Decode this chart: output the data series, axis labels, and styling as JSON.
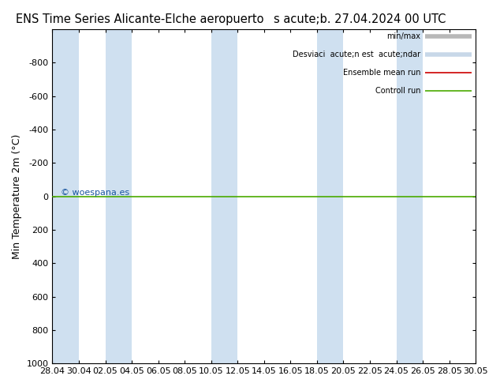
{
  "title_left": "ENS Time Series Alicante-Elche aeropuerto",
  "title_right": "s acute;b. 27.04.2024 00 UTC",
  "ylabel": "Min Temperature 2m (°C)",
  "ylim_bottom": 1000,
  "ylim_top": -1000,
  "yticks": [
    -800,
    -600,
    -400,
    -200,
    0,
    200,
    400,
    600,
    800,
    1000
  ],
  "xlim_start": 0,
  "xlim_end": 32,
  "xtick_labels": [
    "28.04",
    "30.04",
    "02.05",
    "04.05",
    "06.05",
    "08.05",
    "10.05",
    "12.05",
    "14.05",
    "16.05",
    "18.05",
    "20.05",
    "22.05",
    "24.05",
    "26.05",
    "28.05",
    "30.05"
  ],
  "xtick_positions": [
    0,
    2,
    4,
    6,
    8,
    10,
    12,
    14,
    16,
    18,
    20,
    22,
    24,
    26,
    28,
    30,
    32
  ],
  "band_spans": [
    [
      0,
      2
    ],
    [
      4,
      6
    ],
    [
      12,
      14
    ],
    [
      20,
      22
    ],
    [
      26,
      28
    ]
  ],
  "band_color": "#cfe0f0",
  "green_line_y": 0,
  "green_line_color": "#4aaa00",
  "red_line_color": "#cc0000",
  "watermark": "© woespana.es",
  "watermark_color": "#1a56a0",
  "bg_color": "#ffffff",
  "legend_minmax_color": "#b8b8b8",
  "legend_std_color": "#c8d8e8",
  "legend_ensemble_color": "#cc0000",
  "legend_control_color": "#4aaa00",
  "title_fontsize": 10.5,
  "tick_fontsize": 8,
  "ylabel_fontsize": 9
}
